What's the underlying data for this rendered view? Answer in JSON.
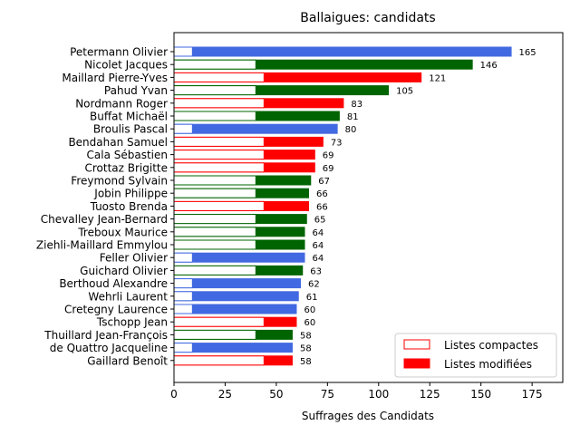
{
  "chart_data": {
    "type": "bar",
    "orientation": "horizontal",
    "title": "Ballaigues: candidats",
    "xlabel": "Suffrages des Candidats",
    "ylabel": "",
    "xlim": [
      0,
      190
    ],
    "xticks": [
      0,
      25,
      50,
      75,
      100,
      125,
      150,
      175
    ],
    "grid": false,
    "legend_position": "bottom-right",
    "legend": [
      "Listes compactes",
      "Listes modifiées"
    ],
    "colors": {
      "blue": "#4169e1",
      "green": "#006400",
      "red": "#ff0000"
    },
    "candidates": [
      {
        "name": "Petermann Olivier",
        "total": 165,
        "compact": 9,
        "color": "blue"
      },
      {
        "name": "Nicolet Jacques",
        "total": 146,
        "compact": 40,
        "color": "green"
      },
      {
        "name": "Maillard Pierre-Yves",
        "total": 121,
        "compact": 44,
        "color": "red"
      },
      {
        "name": "Pahud Yvan",
        "total": 105,
        "compact": 40,
        "color": "green"
      },
      {
        "name": "Nordmann Roger",
        "total": 83,
        "compact": 44,
        "color": "red"
      },
      {
        "name": "Buffat Michaël",
        "total": 81,
        "compact": 40,
        "color": "green"
      },
      {
        "name": "Broulis Pascal",
        "total": 80,
        "compact": 9,
        "color": "blue"
      },
      {
        "name": "Bendahan Samuel",
        "total": 73,
        "compact": 44,
        "color": "red"
      },
      {
        "name": "Cala Sébastien",
        "total": 69,
        "compact": 44,
        "color": "red"
      },
      {
        "name": "Crottaz Brigitte",
        "total": 69,
        "compact": 44,
        "color": "red"
      },
      {
        "name": "Freymond Sylvain",
        "total": 67,
        "compact": 40,
        "color": "green"
      },
      {
        "name": "Jobin Philippe",
        "total": 66,
        "compact": 40,
        "color": "green"
      },
      {
        "name": "Tuosto Brenda",
        "total": 66,
        "compact": 44,
        "color": "red"
      },
      {
        "name": "Chevalley Jean-Bernard",
        "total": 65,
        "compact": 40,
        "color": "green"
      },
      {
        "name": "Treboux Maurice",
        "total": 64,
        "compact": 40,
        "color": "green"
      },
      {
        "name": "Ziehli-Maillard Emmylou",
        "total": 64,
        "compact": 40,
        "color": "green"
      },
      {
        "name": "Feller Olivier",
        "total": 64,
        "compact": 9,
        "color": "blue"
      },
      {
        "name": "Guichard Olivier",
        "total": 63,
        "compact": 40,
        "color": "green"
      },
      {
        "name": "Berthoud Alexandre",
        "total": 62,
        "compact": 9,
        "color": "blue"
      },
      {
        "name": "Wehrli Laurent",
        "total": 61,
        "compact": 9,
        "color": "blue"
      },
      {
        "name": "Cretegny Laurence",
        "total": 60,
        "compact": 9,
        "color": "blue"
      },
      {
        "name": "Tschopp Jean",
        "total": 60,
        "compact": 44,
        "color": "red"
      },
      {
        "name": "Thuillard Jean-François",
        "total": 58,
        "compact": 40,
        "color": "green"
      },
      {
        "name": "de Quattro Jacqueline",
        "total": 58,
        "compact": 9,
        "color": "blue"
      },
      {
        "name": "Gaillard Benoît",
        "total": 58,
        "compact": 44,
        "color": "red"
      }
    ]
  }
}
